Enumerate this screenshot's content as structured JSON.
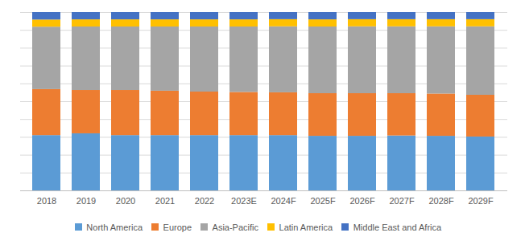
{
  "chart_data": {
    "type": "bar",
    "stacked": true,
    "grid": true,
    "tick_labels": "x",
    "legend": "bottom",
    "categories": [
      "2018",
      "2019",
      "2020",
      "2021",
      "2022",
      "2023E",
      "2024F",
      "2025F",
      "2026F",
      "2027F",
      "2028F",
      "2029F"
    ],
    "ylim": [
      0,
      100
    ],
    "yticks": [
      0,
      10,
      20,
      30,
      40,
      50,
      60,
      70,
      80,
      90,
      100
    ],
    "series": [
      {
        "name": "North America",
        "color": "#5b9bd5",
        "values": [
          31.0,
          32.0,
          31.0,
          31.0,
          31.0,
          31.0,
          31.0,
          30.6,
          30.6,
          30.8,
          30.6,
          30.2
        ]
      },
      {
        "name": "Europe",
        "color": "#ed7d31",
        "values": [
          25.8,
          24.3,
          25.3,
          24.9,
          24.4,
          24.2,
          24.0,
          23.9,
          23.9,
          23.7,
          23.7,
          23.4
        ]
      },
      {
        "name": "Asia-Pacific",
        "color": "#a5a5a5",
        "values": [
          35.0,
          35.6,
          35.6,
          36.0,
          36.5,
          36.7,
          37.0,
          37.4,
          37.5,
          37.5,
          37.7,
          38.4
        ]
      },
      {
        "name": "Latin America",
        "color": "#ffc000",
        "values": [
          4.0,
          4.0,
          4.0,
          4.0,
          4.0,
          4.0,
          4.0,
          4.0,
          4.0,
          4.0,
          4.0,
          4.0
        ]
      },
      {
        "name": "Middle East and Africa",
        "color": "#4472c4",
        "values": [
          4.2,
          4.1,
          4.1,
          4.1,
          4.1,
          4.1,
          4.0,
          4.1,
          4.0,
          4.0,
          4.0,
          4.0
        ]
      }
    ]
  }
}
